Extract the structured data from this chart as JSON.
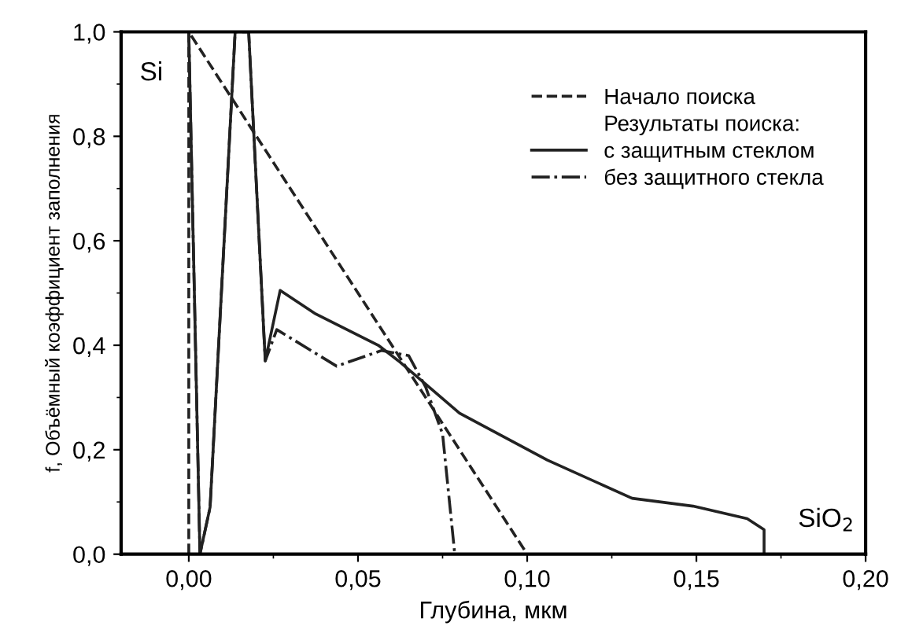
{
  "chart_data": {
    "type": "line",
    "xlabel": "Глубина, мкм",
    "ylabel": "f, Объёмный коэффициент заполнения",
    "xlim": [
      -0.02,
      0.2
    ],
    "ylim": [
      0,
      1.0
    ],
    "xticks": [
      {
        "value": 0.0,
        "label": "0,00"
      },
      {
        "value": 0.05,
        "label": "0,05"
      },
      {
        "value": 0.1,
        "label": "0,10"
      },
      {
        "value": 0.15,
        "label": "0,15"
      },
      {
        "value": 0.2,
        "label": "0,20"
      }
    ],
    "yticks": [
      {
        "value": 0.0,
        "label": "0,0"
      },
      {
        "value": 0.2,
        "label": "0,2"
      },
      {
        "value": 0.4,
        "label": "0,4"
      },
      {
        "value": 0.6,
        "label": "0,6"
      },
      {
        "value": 0.8,
        "label": "0,8"
      },
      {
        "value": 1.0,
        "label": "1,0"
      }
    ],
    "grid": false,
    "legend": "top right",
    "series": [
      {
        "name": "Начало поиска",
        "color": "#222222",
        "line_style": "dashed",
        "x": [
          0.0,
          0.0,
          0.1,
          0.165
        ],
        "values": [
          0.0,
          1.0,
          0.0,
          0.0
        ]
      },
      {
        "name": "с защитным стеклом",
        "color": "#222222",
        "line_style": "solid",
        "x": [
          0.0,
          0.0033,
          0.0063,
          0.0137,
          0.0177,
          0.0226,
          0.027,
          0.0375,
          0.056,
          0.062,
          0.08,
          0.106,
          0.131,
          0.149,
          0.165,
          0.17,
          0.17
        ],
        "values": [
          1.0,
          0.0,
          0.09,
          1.0,
          1.0,
          0.37,
          0.505,
          0.46,
          0.4,
          0.37,
          0.27,
          0.18,
          0.107,
          0.092,
          0.068,
          0.047,
          0.0
        ]
      },
      {
        "name": "без защитного стекла",
        "color": "#222222",
        "line_style": "dashdot",
        "x": [
          0.0,
          0.0033,
          0.0063,
          0.0137,
          0.0177,
          0.0226,
          0.026,
          0.0437,
          0.057,
          0.065,
          0.07,
          0.075,
          0.0786,
          0.165
        ],
        "values": [
          1.0,
          0.0,
          0.09,
          1.0,
          1.0,
          0.37,
          0.43,
          0.36,
          0.39,
          0.38,
          0.32,
          0.23,
          0.0,
          0.0
        ]
      }
    ],
    "annotations": [
      "Результаты поиска:",
      "Si",
      "SiO$_{2}$"
    ]
  }
}
